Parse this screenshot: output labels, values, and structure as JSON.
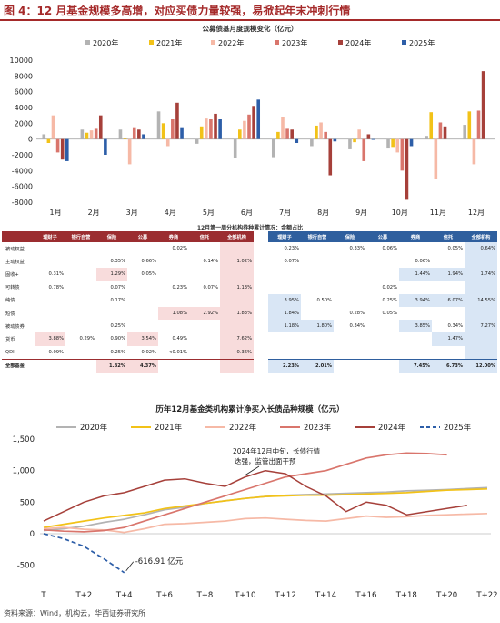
{
  "figure_title": "图 4：12 月基金规模多高增，对应买债力量较强，易掀起年末冲刺行情",
  "source": "资料来源：Wind，机构云，华西证券研究所",
  "colors": {
    "2020": "#b3b3b3",
    "2021": "#f2c218",
    "2022": "#f6b9a6",
    "2023": "#d9756c",
    "2024": "#a6403a",
    "2025": "#2d5ea8"
  },
  "chart_data": [
    {
      "type": "bar",
      "title": "公募债基月度规模变化（亿元）",
      "categories": [
        "1月",
        "2月",
        "3月",
        "4月",
        "5月",
        "6月",
        "7月",
        "8月",
        "9月",
        "10月",
        "11月",
        "12月"
      ],
      "series": [
        {
          "name": "2020年",
          "values": [
            600,
            1200,
            1200,
            3500,
            -600,
            -2400,
            -2300,
            -900,
            -1300,
            -1200,
            400,
            1800
          ]
        },
        {
          "name": "2021年",
          "values": [
            -500,
            800,
            100,
            2000,
            1600,
            1200,
            900,
            1700,
            -400,
            -1000,
            3400,
            3500
          ]
        },
        {
          "name": "2022年",
          "values": [
            3000,
            1100,
            -3200,
            -900,
            2600,
            2300,
            2800,
            2100,
            1200,
            -1700,
            -5000,
            -3200
          ]
        },
        {
          "name": "2023年",
          "values": [
            -1700,
            1300,
            1500,
            2500,
            2500,
            3100,
            1300,
            900,
            -2800,
            -4000,
            2100,
            3600
          ]
        },
        {
          "name": "2024年",
          "values": [
            -2600,
            3000,
            1200,
            4600,
            3200,
            4200,
            1200,
            -4600,
            600,
            -7700,
            1600,
            8600
          ]
        },
        {
          "name": "2025年",
          "values": [
            -2800,
            -2000,
            600,
            1500,
            2500,
            5000,
            -500,
            -300,
            -100,
            -900,
            null,
            null
          ]
        }
      ],
      "ylim": [
        -8000,
        10000
      ],
      "yticks": [
        10000,
        8000,
        6000,
        4000,
        2000,
        0,
        -2000,
        -4000,
        -6000,
        -8000
      ],
      "legend": "top"
    },
    {
      "type": "table",
      "title": "12月第一周分机构券种累计情况：金额占比",
      "columns": [
        "",
        "理财子",
        "银行自营",
        "保险",
        "公募",
        "券商",
        "信托",
        "全部机构"
      ],
      "left_rows": [
        [
          "被动权益",
          "",
          "",
          "",
          "",
          "0.02%",
          "",
          ""
        ],
        [
          "主动权益",
          "",
          "",
          "0.35%",
          "0.66%",
          "",
          "0.14%",
          "1.02%"
        ],
        [
          "固收+",
          "0.31%",
          "",
          "1.29%",
          "0.05%",
          "",
          "",
          ""
        ],
        [
          "可转债",
          "0.78%",
          "",
          "0.07%",
          "",
          "0.23%",
          "0.07%",
          "1.13%"
        ],
        [
          "纯债",
          "",
          "",
          "0.17%",
          "",
          "",
          "",
          ""
        ],
        [
          "短债",
          "",
          "",
          "",
          "",
          "1.08%",
          "2.92%",
          "1.83%"
        ],
        [
          "被动债券",
          "",
          "",
          "0.25%",
          "",
          "",
          "",
          ""
        ],
        [
          "货币",
          "3.88%",
          "0.29%",
          "0.90%",
          "3.54%",
          "0.49%",
          "",
          "7.62%"
        ],
        [
          "QDII",
          "0.09%",
          "",
          "0.25%",
          "0.02%",
          "<0.01%",
          "",
          "0.36%"
        ],
        [
          "全部基金",
          "",
          "",
          "1.82%",
          "4.37%",
          "",
          "",
          ""
        ]
      ],
      "right_rows": [
        [
          "0.23%",
          "",
          "0.33%",
          "0.06%",
          "",
          "0.05%",
          "0.64%"
        ],
        [
          "0.07%",
          "",
          "",
          "",
          "0.06%",
          "",
          ""
        ],
        [
          "",
          "",
          "",
          "",
          "1.44%",
          "1.94%",
          "1.74%"
        ],
        [
          "",
          "",
          "",
          "0.02%",
          "",
          "",
          ""
        ],
        [
          "3.95%",
          "0.50%",
          "",
          "0.25%",
          "3.94%",
          "6.07%",
          "14.55%"
        ],
        [
          "1.84%",
          "",
          "0.28%",
          "0.05%",
          "",
          "",
          ""
        ],
        [
          "1.18%",
          "1.80%",
          "0.34%",
          "",
          "3.85%",
          "0.34%",
          "7.27%"
        ],
        [
          "",
          "",
          "",
          "",
          "",
          "1.47%",
          ""
        ],
        [
          "",
          "",
          "",
          "",
          "",
          "",
          ""
        ],
        [
          "2.23%",
          "2.01%",
          "",
          "",
          "7.45%",
          "6.73%",
          "12.00%"
        ]
      ]
    },
    {
      "type": "line",
      "title": "历年12月基金类机构累计净买入长债品种规模（亿元）",
      "x": [
        "T",
        "T+1",
        "T+2",
        "T+3",
        "T+4",
        "T+5",
        "T+6",
        "T+7",
        "T+8",
        "T+9",
        "T+10",
        "T+11",
        "T+12",
        "T+13",
        "T+14",
        "T+15",
        "T+16",
        "T+17",
        "T+18",
        "T+19",
        "T+20",
        "T+21",
        "T+22"
      ],
      "xticks": [
        "T",
        "T+2",
        "T+4",
        "T+6",
        "T+8",
        "T+10",
        "T+12",
        "T+14",
        "T+16",
        "T+18",
        "T+20",
        "T+22"
      ],
      "series": [
        {
          "name": "2020年",
          "dashed": false,
          "values": [
            50,
            80,
            120,
            180,
            230,
            300,
            380,
            420,
            480,
            520,
            560,
            590,
            610,
            620,
            630,
            640,
            650,
            660,
            680,
            690,
            700,
            715,
            730
          ]
        },
        {
          "name": "2021年",
          "dashed": false,
          "values": [
            100,
            150,
            200,
            250,
            290,
            330,
            400,
            440,
            480,
            520,
            560,
            590,
            600,
            610,
            610,
            620,
            630,
            640,
            650,
            670,
            690,
            700,
            710
          ]
        },
        {
          "name": "2022年",
          "dashed": false,
          "values": [
            80,
            100,
            70,
            60,
            20,
            80,
            150,
            160,
            180,
            200,
            240,
            250,
            230,
            210,
            200,
            240,
            280,
            260,
            270,
            290,
            300,
            310,
            320
          ]
        },
        {
          "name": "2023年",
          "dashed": false,
          "values": [
            60,
            40,
            30,
            50,
            100,
            200,
            300,
            400,
            500,
            600,
            700,
            800,
            900,
            950,
            1000,
            1100,
            1200,
            1250,
            1280,
            1270,
            1250,
            null,
            null
          ]
        },
        {
          "name": "2024年",
          "dashed": false,
          "values": [
            200,
            350,
            500,
            600,
            650,
            750,
            850,
            870,
            800,
            750,
            900,
            1000,
            950,
            750,
            600,
            350,
            500,
            450,
            300,
            350,
            400,
            450,
            null
          ]
        },
        {
          "name": "2025年",
          "dashed": true,
          "values": [
            0,
            -80,
            -200,
            -400,
            -616.91,
            null,
            null,
            null,
            null,
            null,
            null,
            null,
            null,
            null,
            null,
            null,
            null,
            null,
            null,
            null,
            null,
            null,
            null
          ]
        }
      ],
      "annotations": [
        "2024年12月中旬，长债行情迭强，监管出面干预",
        "-616.91 亿元"
      ],
      "ylim": [
        -750,
        1500
      ],
      "yticks": [
        1500,
        1000,
        500,
        0,
        -500
      ],
      "legend": "top"
    }
  ]
}
